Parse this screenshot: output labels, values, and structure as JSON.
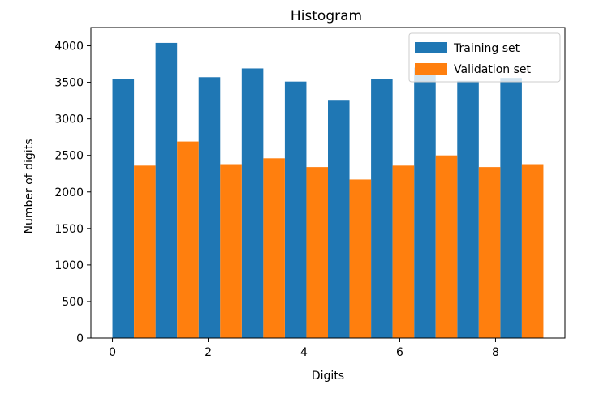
{
  "chart_data": {
    "type": "bar",
    "title": "Histogram",
    "xlabel": "Digits",
    "ylabel": "Number of digits",
    "xlim": [
      -0.45,
      9.45
    ],
    "ylim": [
      0,
      4250
    ],
    "x_ticks": [
      0,
      2,
      4,
      6,
      8
    ],
    "y_ticks": [
      0,
      500,
      1000,
      1500,
      2000,
      2500,
      3000,
      3500,
      4000
    ],
    "grid": false,
    "legend_position": "top-right",
    "bin_width": 0.9,
    "bin_starts": [
      0,
      0.9,
      1.8,
      2.7,
      3.6,
      4.5,
      5.4,
      6.3,
      7.2,
      8.1
    ],
    "series": [
      {
        "name": "Training set",
        "color": "#1f77b4",
        "values": [
          3550,
          4040,
          3570,
          3690,
          3510,
          3260,
          3550,
          3700,
          3520,
          3560
        ]
      },
      {
        "name": "Validation set",
        "color": "#ff7f0e",
        "values": [
          2360,
          2690,
          2380,
          2460,
          2340,
          2170,
          2360,
          2500,
          2340,
          2380
        ]
      }
    ]
  }
}
